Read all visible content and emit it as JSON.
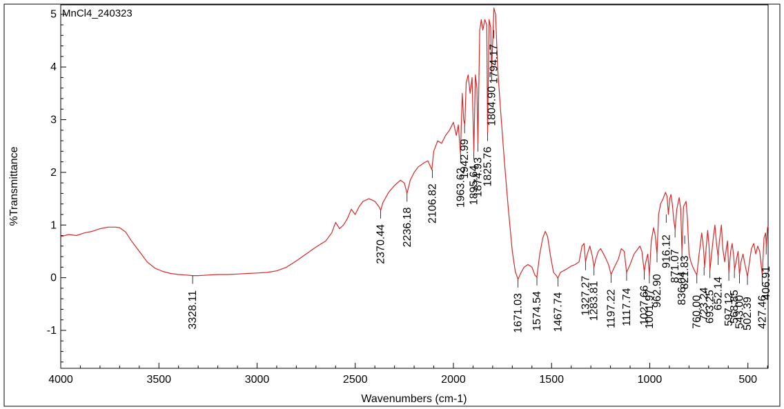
{
  "chart_data": {
    "type": "line",
    "sample_label": "MnCl4_240323",
    "xlabel": "Wavenumbers (cm-1)",
    "ylabel": "%Transmittance",
    "xlim": [
      4000,
      397
    ],
    "ylim": [
      -1.72,
      5.18
    ],
    "x_ticks": [
      4000,
      3500,
      3000,
      2500,
      2000,
      1500,
      1000,
      500
    ],
    "y_ticks": [
      5,
      4,
      3,
      2,
      1,
      0,
      -1
    ],
    "line_color": "#d62728",
    "grid": false,
    "series": [
      {
        "values": [
          [
            4000,
            0.78
          ],
          [
            3960,
            0.82
          ],
          [
            3920,
            0.8
          ],
          [
            3880,
            0.85
          ],
          [
            3840,
            0.88
          ],
          [
            3800,
            0.93
          ],
          [
            3760,
            0.96
          ],
          [
            3720,
            0.96
          ],
          [
            3700,
            0.95
          ],
          [
            3670,
            0.87
          ],
          [
            3640,
            0.7
          ],
          [
            3600,
            0.5
          ],
          [
            3560,
            0.3
          ],
          [
            3520,
            0.18
          ],
          [
            3480,
            0.12
          ],
          [
            3440,
            0.08
          ],
          [
            3400,
            0.06
          ],
          [
            3360,
            0.05
          ],
          [
            3330,
            0.04
          ],
          [
            3300,
            0.04
          ],
          [
            3250,
            0.05
          ],
          [
            3200,
            0.06
          ],
          [
            3150,
            0.06
          ],
          [
            3100,
            0.07
          ],
          [
            3050,
            0.08
          ],
          [
            3000,
            0.09
          ],
          [
            2950,
            0.1
          ],
          [
            2900,
            0.13
          ],
          [
            2850,
            0.2
          ],
          [
            2800,
            0.32
          ],
          [
            2750,
            0.45
          ],
          [
            2700,
            0.58
          ],
          [
            2650,
            0.7
          ],
          [
            2620,
            0.85
          ],
          [
            2600,
            1.05
          ],
          [
            2580,
            0.93
          ],
          [
            2560,
            1.0
          ],
          [
            2540,
            1.12
          ],
          [
            2520,
            1.3
          ],
          [
            2500,
            1.2
          ],
          [
            2480,
            1.35
          ],
          [
            2460,
            1.45
          ],
          [
            2430,
            1.5
          ],
          [
            2400,
            1.45
          ],
          [
            2380,
            1.35
          ],
          [
            2370,
            1.28
          ],
          [
            2360,
            1.42
          ],
          [
            2330,
            1.62
          ],
          [
            2300,
            1.75
          ],
          [
            2270,
            1.85
          ],
          [
            2250,
            1.8
          ],
          [
            2236,
            1.6
          ],
          [
            2220,
            1.85
          ],
          [
            2200,
            2.0
          ],
          [
            2180,
            2.1
          ],
          [
            2150,
            2.18
          ],
          [
            2130,
            2.22
          ],
          [
            2110,
            2.05
          ],
          [
            2100,
            2.4
          ],
          [
            2080,
            2.6
          ],
          [
            2060,
            2.55
          ],
          [
            2040,
            2.7
          ],
          [
            2020,
            2.8
          ],
          [
            2000,
            2.95
          ],
          [
            1985,
            2.7
          ],
          [
            1975,
            2.9
          ],
          [
            1964,
            2.35
          ],
          [
            1955,
            3.5
          ],
          [
            1948,
            3.0
          ],
          [
            1942,
            2.9
          ],
          [
            1935,
            3.7
          ],
          [
            1925,
            3.85
          ],
          [
            1915,
            3.5
          ],
          [
            1905,
            3.8
          ],
          [
            1896,
            2.4
          ],
          [
            1888,
            3.85
          ],
          [
            1880,
            3.6
          ],
          [
            1875,
            2.55
          ],
          [
            1866,
            4.7
          ],
          [
            1858,
            4.9
          ],
          [
            1850,
            4.7
          ],
          [
            1840,
            4.9
          ],
          [
            1830,
            4.8
          ],
          [
            1826,
            2.75
          ],
          [
            1818,
            4.9
          ],
          [
            1810,
            4.75
          ],
          [
            1805,
            3.9
          ],
          [
            1794,
            5.12
          ],
          [
            1785,
            5.0
          ],
          [
            1775,
            4.0
          ],
          [
            1760,
            3.2
          ],
          [
            1740,
            2.2
          ],
          [
            1720,
            1.3
          ],
          [
            1700,
            0.5
          ],
          [
            1685,
            0.12
          ],
          [
            1671,
            -0.03
          ],
          [
            1655,
            0.1
          ],
          [
            1640,
            0.2
          ],
          [
            1620,
            0.25
          ],
          [
            1600,
            0.2
          ],
          [
            1585,
            0.05
          ],
          [
            1575,
            0.01
          ],
          [
            1560,
            0.45
          ],
          [
            1545,
            0.75
          ],
          [
            1532,
            0.88
          ],
          [
            1520,
            0.78
          ],
          [
            1505,
            0.4
          ],
          [
            1490,
            0.1
          ],
          [
            1475,
            0.04
          ],
          [
            1468,
            -0.01
          ],
          [
            1455,
            0.1
          ],
          [
            1430,
            0.15
          ],
          [
            1400,
            0.22
          ],
          [
            1380,
            0.25
          ],
          [
            1360,
            0.3
          ],
          [
            1345,
            0.6
          ],
          [
            1335,
            0.65
          ],
          [
            1327,
            0.3
          ],
          [
            1318,
            0.45
          ],
          [
            1305,
            0.6
          ],
          [
            1292,
            0.4
          ],
          [
            1284,
            0.2
          ],
          [
            1275,
            0.35
          ],
          [
            1262,
            0.5
          ],
          [
            1250,
            0.55
          ],
          [
            1235,
            0.45
          ],
          [
            1222,
            0.35
          ],
          [
            1210,
            0.25
          ],
          [
            1197,
            0.06
          ],
          [
            1180,
            0.2
          ],
          [
            1160,
            0.35
          ],
          [
            1145,
            0.55
          ],
          [
            1130,
            0.5
          ],
          [
            1118,
            0.1
          ],
          [
            1100,
            0.25
          ],
          [
            1080,
            0.45
          ],
          [
            1060,
            0.55
          ],
          [
            1050,
            0.6
          ],
          [
            1040,
            0.5
          ],
          [
            1028,
            0.12
          ],
          [
            1020,
            0.3
          ],
          [
            1010,
            0.45
          ],
          [
            1002,
            0.05
          ],
          [
            992,
            0.7
          ],
          [
            980,
            0.95
          ],
          [
            972,
            0.8
          ],
          [
            963,
            0.45
          ],
          [
            955,
            1.2
          ],
          [
            945,
            1.4
          ],
          [
            932,
            1.5
          ],
          [
            920,
            1.62
          ],
          [
            912,
            1.55
          ],
          [
            905,
            1.2
          ],
          [
            898,
            1.5
          ],
          [
            892,
            1.58
          ],
          [
            885,
            1.4
          ],
          [
            878,
            1.1
          ],
          [
            871,
            0.92
          ],
          [
            862,
            1.3
          ],
          [
            850,
            1.52
          ],
          [
            842,
            1.3
          ],
          [
            836,
            0.5
          ],
          [
            828,
            1.35
          ],
          [
            815,
            1.45
          ],
          [
            808,
            1.1
          ],
          [
            800,
            0.45
          ],
          [
            790,
            0.3
          ],
          [
            780,
            0.2
          ],
          [
            770,
            0.12
          ],
          [
            760,
            0.05
          ],
          [
            750,
            0.4
          ],
          [
            742,
            0.65
          ],
          [
            735,
            0.85
          ],
          [
            726,
            0.55
          ],
          [
            720,
            0.2
          ],
          [
            712,
            0.6
          ],
          [
            705,
            0.9
          ],
          [
            698,
            0.6
          ],
          [
            693,
            0.15
          ],
          [
            685,
            0.45
          ],
          [
            675,
            0.8
          ],
          [
            668,
            1.0
          ],
          [
            660,
            0.65
          ],
          [
            652,
            0.4
          ],
          [
            645,
            0.7
          ],
          [
            635,
            1.0
          ],
          [
            628,
            0.55
          ],
          [
            618,
            0.3
          ],
          [
            610,
            0.55
          ],
          [
            604,
            0.7
          ],
          [
            597,
            0.1
          ],
          [
            588,
            0.5
          ],
          [
            580,
            0.65
          ],
          [
            572,
            0.4
          ],
          [
            568,
            0.15
          ],
          [
            558,
            0.35
          ],
          [
            550,
            0.5
          ],
          [
            543,
            0.05
          ],
          [
            535,
            0.3
          ],
          [
            525,
            0.45
          ],
          [
            515,
            0.25
          ],
          [
            502,
            0.02
          ],
          [
            492,
            0.3
          ],
          [
            482,
            0.55
          ],
          [
            470,
            0.65
          ],
          [
            460,
            0.45
          ],
          [
            450,
            0.6
          ],
          [
            440,
            0.5
          ],
          [
            427,
            0.05
          ],
          [
            418,
            0.75
          ],
          [
            410,
            0.85
          ],
          [
            406,
            0.6
          ],
          [
            400,
            0.95
          ],
          [
            397,
            0.98
          ]
        ]
      }
    ],
    "peaks": [
      {
        "x": 3328.11,
        "label": "3328.11",
        "y": 0.04
      },
      {
        "x": 2370.44,
        "label": "2370.44",
        "y": 1.28
      },
      {
        "x": 2236.18,
        "label": "2236.18",
        "y": 1.6
      },
      {
        "x": 2106.82,
        "label": "2106.82",
        "y": 2.05
      },
      {
        "x": 1963.62,
        "label": "1963.62",
        "y": 2.35
      },
      {
        "x": 1942.99,
        "label": "1942.99",
        "y": 2.9
      },
      {
        "x": 1895.64,
        "label": "1895.64",
        "y": 2.4
      },
      {
        "x": 1874.93,
        "label": "1874.93",
        "y": 2.55
      },
      {
        "x": 1825.76,
        "label": "1825.76",
        "y": 2.75
      },
      {
        "x": 1804.9,
        "label": "1804.90",
        "y": 3.9
      },
      {
        "x": 1794.17,
        "label": "1794.17",
        "y": 4.7
      },
      {
        "x": 1671.03,
        "label": "1671.03",
        "y": -0.03
      },
      {
        "x": 1574.54,
        "label": "1574.54",
        "y": 0.01
      },
      {
        "x": 1467.74,
        "label": "1467.74",
        "y": -0.01
      },
      {
        "x": 1327.27,
        "label": "1327.27",
        "y": 0.3
      },
      {
        "x": 1283.81,
        "label": "1283.81",
        "y": 0.2
      },
      {
        "x": 1197.22,
        "label": "1197.22",
        "y": 0.06
      },
      {
        "x": 1117.74,
        "label": "1117.74",
        "y": 0.1
      },
      {
        "x": 1027.66,
        "label": "1027.66",
        "y": 0.12
      },
      {
        "x": 1001.97,
        "label": "1001.97",
        "y": 0.05
      },
      {
        "x": 962.9,
        "label": "962.90",
        "y": 0.45
      },
      {
        "x": 916.12,
        "label": "916.12",
        "y": 1.2
      },
      {
        "x": 871.07,
        "label": "871.07",
        "y": 0.92
      },
      {
        "x": 836.04,
        "label": "836.04",
        "y": 0.5
      },
      {
        "x": 821.83,
        "label": "821.83",
        "y": 0.8
      },
      {
        "x": 760.0,
        "label": "760.00",
        "y": 0.05
      },
      {
        "x": 723.24,
        "label": "723.24",
        "y": 0.2
      },
      {
        "x": 693.25,
        "label": "693.25",
        "y": 0.15
      },
      {
        "x": 652.14,
        "label": "652.14",
        "y": 0.4
      },
      {
        "x": 597.12,
        "label": "597.12",
        "y": 0.1
      },
      {
        "x": 568.85,
        "label": "568.85",
        "y": 0.15
      },
      {
        "x": 543.0,
        "label": "543.00",
        "y": 0.05
      },
      {
        "x": 502.39,
        "label": "502.39",
        "y": 0.02
      },
      {
        "x": 427.46,
        "label": "427.46",
        "y": 0.05
      },
      {
        "x": 406.91,
        "label": "406.91",
        "y": 0.6
      }
    ]
  }
}
